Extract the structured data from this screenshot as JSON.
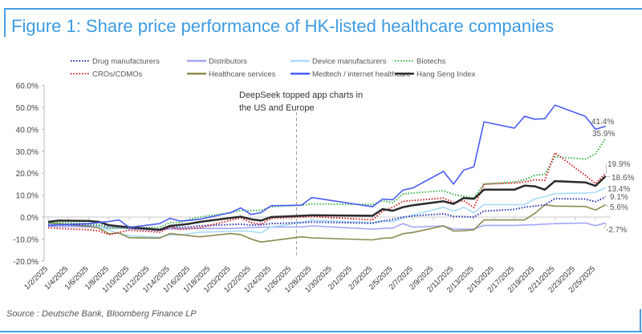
{
  "title": "Figure 1: Share price performance of HK-listed healthcare companies",
  "source": "Source : Deutsche Bank, Bloomberg Finance LP",
  "chart_data": {
    "type": "line",
    "title": "Figure 1: Share price performance of HK-listed healthcare companies",
    "xlabel": "",
    "ylabel": "",
    "ylim": [
      -20,
      60
    ],
    "yticks": [
      "60.0%",
      "50.0%",
      "40.0%",
      "30.0%",
      "20.0%",
      "10.0%",
      "0.0%",
      "-10.0%",
      "-20.0%"
    ],
    "ytick_values": [
      60,
      50,
      40,
      30,
      20,
      10,
      0,
      -10,
      -20
    ],
    "xtick_labels": [
      "1/2/2025",
      "1/4/2025",
      "1/6/2025",
      "1/8/2025",
      "1/10/2025",
      "1/12/2025",
      "1/14/2025",
      "1/16/2025",
      "1/18/2025",
      "1/20/2025",
      "1/22/2025",
      "1/24/2025",
      "1/26/2025",
      "1/28/2025",
      "1/30/2025",
      "2/1/2025",
      "2/3/2025",
      "2/5/2025",
      "2/7/2025",
      "2/9/2025",
      "2/11/2025",
      "2/13/2025",
      "2/15/2025",
      "2/17/2025",
      "2/19/2025",
      "2/21/2025",
      "2/23/2025",
      "2/25/2025"
    ],
    "x_days_since_jan2": [
      0,
      1,
      4,
      5,
      6,
      7,
      8,
      11,
      12,
      13,
      14,
      15,
      18,
      19,
      20,
      21,
      22,
      25,
      26,
      32,
      33,
      34,
      35,
      36,
      39,
      40,
      41,
      42,
      43,
      46,
      47,
      48,
      49,
      50,
      53,
      54,
      55
    ],
    "annotation": {
      "line1": "DeepSeek topped app charts in",
      "line2": "the US and Europe",
      "x_day": 24.5
    },
    "legend_placement": "top",
    "series": [
      {
        "name": "Drug manufacturers",
        "color": "#2b33b5",
        "style": "dotted",
        "end_label": "9.1%",
        "values": [
          -3.4,
          -3.6,
          -3.6,
          -3.8,
          -4,
          -4.5,
          -5.2,
          -6.2,
          -4.5,
          -4.8,
          -4.5,
          -4,
          -3.4,
          -3.2,
          -3.7,
          -3.5,
          -3,
          -2.5,
          -2.3,
          -2.8,
          -1.8,
          -1.2,
          0,
          0.5,
          1.5,
          0.3,
          0.2,
          0,
          2.7,
          3.5,
          4.5,
          5,
          5.6,
          8.4,
          8.2,
          7,
          9.1
        ]
      },
      {
        "name": "Distributors",
        "color": "#a3a6f5",
        "style": "solid",
        "end_label": "-2.7%",
        "values": [
          -4,
          -4.3,
          -4.5,
          -4.8,
          -5,
          -5,
          -5.2,
          -5.5,
          -5.5,
          -5.3,
          -5.3,
          -5.2,
          -5.2,
          -5,
          -4.8,
          -4.6,
          -4.6,
          -4.5,
          -4,
          -5.5,
          -5.2,
          -5,
          -3,
          -4.6,
          -4,
          -5.5,
          -5.5,
          -5.5,
          -3.8,
          -3.8,
          -3.6,
          -3.5,
          -3.2,
          -3,
          -2.7,
          -3.9,
          -2.7
        ]
      },
      {
        "name": "Device manufacturers",
        "color": "#a9dcf7",
        "style": "solid",
        "end_label": "13.4%",
        "values": [
          -3,
          -3.5,
          -4,
          -4.5,
          -6,
          -7.5,
          -8.5,
          -9.2,
          -8.2,
          -8.2,
          -7.5,
          -6.9,
          -6.5,
          -6.3,
          -6.5,
          -7.2,
          -4.5,
          -2.5,
          -1.5,
          -2.5,
          -1.8,
          -2.2,
          -0.5,
          0.9,
          4.5,
          2.7,
          4.5,
          2,
          5.7,
          5.7,
          5.7,
          8.2,
          9.3,
          10.7,
          10.9,
          11.3,
          13.4
        ]
      },
      {
        "name": "Biotechs",
        "color": "#3cb54a",
        "style": "dotted",
        "end_label": "35.9%",
        "values": [
          -2.5,
          -2.5,
          -3,
          -3.5,
          -5,
          -5,
          -5,
          -4.6,
          -2.5,
          -2.5,
          -1,
          0,
          2,
          3,
          3,
          3,
          4.7,
          5.4,
          6,
          5.7,
          7.5,
          6.5,
          10.5,
          11,
          12,
          10.3,
          9.5,
          8.7,
          15,
          16,
          17,
          19,
          19.5,
          27.5,
          26.4,
          28.8,
          35.9
        ]
      },
      {
        "name": "CROs/CDMOs",
        "color": "#d0282e",
        "style": "dotted",
        "end_label": "19.9%",
        "values": [
          -4.8,
          -5.2,
          -5.8,
          -6.3,
          -8,
          -7,
          -6,
          -6.9,
          -4.6,
          -5.7,
          -5.3,
          -4.8,
          -1.5,
          -0.4,
          -2.5,
          -3.3,
          -0.6,
          0,
          0.3,
          -1.3,
          2.7,
          4.5,
          7.2,
          7.5,
          8.7,
          6.6,
          7.5,
          4.3,
          15,
          15.5,
          16,
          17,
          16.7,
          29.3,
          19,
          15.3,
          19.9
        ]
      },
      {
        "name": "Healthcare services",
        "color": "#8c8a4e",
        "style": "solid",
        "end_label": "5.6%",
        "values": [
          -2.5,
          -3,
          -4.2,
          -5,
          -7.6,
          -7.3,
          -9.4,
          -9.6,
          -7.5,
          -8,
          -8.5,
          -9,
          -7.5,
          -8,
          -10,
          -11.4,
          -10.8,
          -9,
          -9.5,
          -10.4,
          -9.7,
          -9.4,
          -7.6,
          -7,
          -4,
          -6.4,
          -6.2,
          -5.8,
          -1.3,
          -1.3,
          -1.3,
          1.6,
          5.6,
          5,
          4.8,
          3.2,
          5.6
        ]
      },
      {
        "name": "Medtech / internet healthcare",
        "color": "#4b5cf5",
        "style": "solid",
        "end_label": "41.4%",
        "values": [
          -4,
          -3.5,
          -3,
          -2.5,
          -2,
          -1.3,
          -4.7,
          -3,
          -0.6,
          -1.8,
          -1.5,
          -1,
          2,
          4.2,
          1.2,
          2,
          5.2,
          5.4,
          8.9,
          4.7,
          8.2,
          7.9,
          12.3,
          13.3,
          20.8,
          15,
          21.4,
          22.9,
          43.4,
          40.5,
          45.9,
          44.6,
          44.8,
          51,
          45.9,
          40,
          41.4
        ]
      },
      {
        "name": "Hang Seng Index",
        "color": "#2b2b2b",
        "style": "solid",
        "end_label": "18.6%",
        "values": [
          -2.2,
          -1.6,
          -1.8,
          -2.2,
          -3.7,
          -4.2,
          -4.6,
          -5.8,
          -4,
          -3.6,
          -3,
          -2.2,
          -0.4,
          0.2,
          -1,
          -1.6,
          0,
          0.6,
          0.8,
          0.6,
          3.6,
          2.9,
          4.5,
          5.4,
          7.2,
          6,
          8.7,
          8.3,
          12.5,
          12.5,
          14.3,
          14,
          12.5,
          16.4,
          15.8,
          14.2,
          18.6
        ]
      }
    ]
  }
}
